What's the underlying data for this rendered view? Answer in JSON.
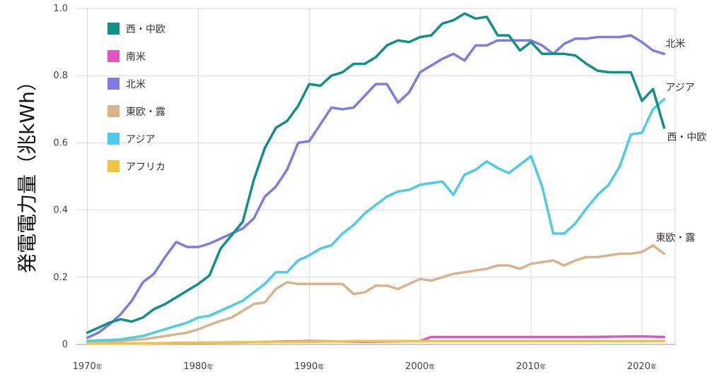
{
  "chart_data": {
    "type": "line",
    "ylabel": "発電電力量（兆kWh）",
    "xlabel": "",
    "title": "",
    "ylim": [
      0,
      1.0
    ],
    "xlim": [
      1969,
      2023
    ],
    "y_ticks": [
      0,
      0.2,
      0.4,
      0.6,
      0.8,
      1.0
    ],
    "y_tick_labels": [
      "0",
      "0.2",
      "0.4",
      "0.6",
      "0.8",
      "1.0"
    ],
    "x_ticks": [
      1970,
      1980,
      1990,
      2000,
      2010,
      2020
    ],
    "x_tick_labels": [
      "1970",
      "1980",
      "1990",
      "2000",
      "2010",
      "2020"
    ],
    "x_tick_suffix": "年",
    "grid": true,
    "legend_position": "top-left",
    "series": [
      {
        "name": "西・中欧",
        "end_label": "西・中欧",
        "color": "#0f9189",
        "x": [
          1970,
          1971,
          1972,
          1973,
          1974,
          1975,
          1976,
          1977,
          1978,
          1979,
          1980,
          1981,
          1982,
          1983,
          1984,
          1985,
          1986,
          1987,
          1988,
          1989,
          1990,
          1991,
          1992,
          1993,
          1994,
          1995,
          1996,
          1997,
          1998,
          1999,
          2000,
          2001,
          2002,
          2003,
          2004,
          2005,
          2006,
          2007,
          2008,
          2009,
          2010,
          2011,
          2012,
          2013,
          2014,
          2015,
          2016,
          2017,
          2018,
          2019,
          2020,
          2021,
          2022
        ],
        "values": [
          0.035,
          0.05,
          0.065,
          0.075,
          0.068,
          0.08,
          0.105,
          0.12,
          0.14,
          0.16,
          0.18,
          0.205,
          0.285,
          0.325,
          0.365,
          0.49,
          0.585,
          0.645,
          0.665,
          0.71,
          0.775,
          0.77,
          0.8,
          0.81,
          0.835,
          0.835,
          0.855,
          0.89,
          0.905,
          0.9,
          0.915,
          0.92,
          0.955,
          0.965,
          0.985,
          0.97,
          0.975,
          0.92,
          0.92,
          0.875,
          0.9,
          0.865,
          0.865,
          0.865,
          0.86,
          0.835,
          0.815,
          0.81,
          0.81,
          0.81,
          0.725,
          0.76,
          0.645
        ]
      },
      {
        "name": "南米",
        "end_label": "",
        "color": "#e055c1",
        "x": [
          1975,
          1980,
          1985,
          1990,
          1995,
          2000,
          2001,
          2005,
          2010,
          2015,
          2020,
          2022
        ],
        "values": [
          0.003,
          0.005,
          0.007,
          0.01,
          0.008,
          0.01,
          0.022,
          0.022,
          0.022,
          0.022,
          0.024,
          0.022
        ]
      },
      {
        "name": "北米",
        "end_label": "北米",
        "color": "#7f7be0",
        "x": [
          1970,
          1971,
          1972,
          1973,
          1974,
          1975,
          1976,
          1977,
          1978,
          1979,
          1980,
          1981,
          1982,
          1983,
          1984,
          1985,
          1986,
          1987,
          1988,
          1989,
          1990,
          1991,
          1992,
          1993,
          1994,
          1995,
          1996,
          1997,
          1998,
          1999,
          2000,
          2001,
          2002,
          2003,
          2004,
          2005,
          2006,
          2007,
          2008,
          2009,
          2010,
          2011,
          2012,
          2013,
          2014,
          2015,
          2016,
          2017,
          2018,
          2019,
          2020,
          2021,
          2022
        ],
        "values": [
          0.02,
          0.035,
          0.06,
          0.09,
          0.13,
          0.185,
          0.21,
          0.26,
          0.305,
          0.29,
          0.29,
          0.3,
          0.315,
          0.33,
          0.345,
          0.375,
          0.44,
          0.47,
          0.52,
          0.6,
          0.605,
          0.655,
          0.705,
          0.7,
          0.705,
          0.74,
          0.775,
          0.775,
          0.72,
          0.75,
          0.81,
          0.83,
          0.85,
          0.865,
          0.845,
          0.89,
          0.89,
          0.905,
          0.905,
          0.905,
          0.905,
          0.89,
          0.865,
          0.895,
          0.91,
          0.91,
          0.915,
          0.915,
          0.915,
          0.92,
          0.9,
          0.875,
          0.865
        ]
      },
      {
        "name": "東欧・露",
        "end_label": "東欧・露",
        "color": "#d9b48a",
        "x": [
          1970,
          1971,
          1972,
          1973,
          1974,
          1975,
          1976,
          1977,
          1978,
          1979,
          1980,
          1981,
          1982,
          1983,
          1984,
          1985,
          1986,
          1987,
          1988,
          1989,
          1990,
          1991,
          1992,
          1993,
          1994,
          1995,
          1996,
          1997,
          1998,
          1999,
          2000,
          2001,
          2002,
          2003,
          2004,
          2005,
          2006,
          2007,
          2008,
          2009,
          2010,
          2011,
          2012,
          2013,
          2014,
          2015,
          2016,
          2017,
          2018,
          2019,
          2020,
          2021,
          2022
        ],
        "values": [
          0.003,
          0.005,
          0.008,
          0.01,
          0.013,
          0.015,
          0.02,
          0.025,
          0.03,
          0.035,
          0.045,
          0.058,
          0.07,
          0.08,
          0.1,
          0.12,
          0.125,
          0.165,
          0.185,
          0.18,
          0.18,
          0.18,
          0.18,
          0.18,
          0.15,
          0.155,
          0.175,
          0.175,
          0.165,
          0.18,
          0.195,
          0.19,
          0.2,
          0.21,
          0.215,
          0.22,
          0.225,
          0.235,
          0.235,
          0.225,
          0.24,
          0.245,
          0.25,
          0.235,
          0.25,
          0.26,
          0.26,
          0.265,
          0.27,
          0.27,
          0.275,
          0.295,
          0.27
        ]
      },
      {
        "name": "アジア",
        "end_label": "アジア",
        "color": "#4ccce8",
        "x": [
          1970,
          1971,
          1972,
          1973,
          1974,
          1975,
          1976,
          1977,
          1978,
          1979,
          1980,
          1981,
          1982,
          1983,
          1984,
          1985,
          1986,
          1987,
          1988,
          1989,
          1990,
          1991,
          1992,
          1993,
          1994,
          1995,
          1996,
          1997,
          1998,
          1999,
          2000,
          2001,
          2002,
          2003,
          2004,
          2005,
          2006,
          2007,
          2008,
          2009,
          2010,
          2011,
          2012,
          2013,
          2014,
          2015,
          2016,
          2017,
          2018,
          2019,
          2020,
          2021,
          2022
        ],
        "values": [
          0.01,
          0.012,
          0.013,
          0.015,
          0.02,
          0.025,
          0.035,
          0.045,
          0.055,
          0.065,
          0.08,
          0.085,
          0.1,
          0.115,
          0.13,
          0.155,
          0.18,
          0.215,
          0.215,
          0.25,
          0.265,
          0.285,
          0.295,
          0.33,
          0.355,
          0.39,
          0.415,
          0.44,
          0.455,
          0.46,
          0.475,
          0.48,
          0.485,
          0.445,
          0.505,
          0.52,
          0.545,
          0.525,
          0.51,
          0.535,
          0.56,
          0.47,
          0.33,
          0.33,
          0.36,
          0.405,
          0.445,
          0.475,
          0.53,
          0.625,
          0.63,
          0.7,
          0.73
        ]
      },
      {
        "name": "アフリカ",
        "end_label": "",
        "color": "#f2c242",
        "x": [
          1970,
          1975,
          1980,
          1985,
          1990,
          1995,
          2000,
          2005,
          2010,
          2015,
          2020,
          2022
        ],
        "values": [
          0.002,
          0.003,
          0.005,
          0.007,
          0.008,
          0.01,
          0.01,
          0.01,
          0.01,
          0.01,
          0.01,
          0.01
        ]
      }
    ]
  }
}
